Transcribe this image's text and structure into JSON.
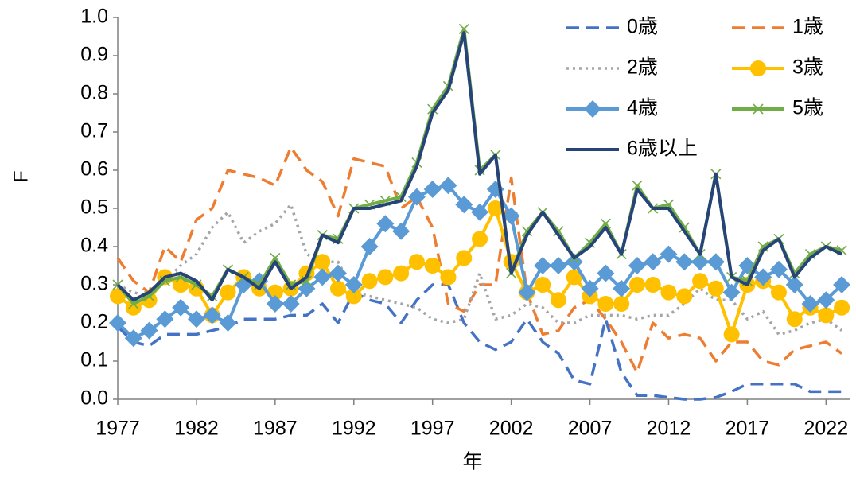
{
  "chart_data": {
    "type": "line",
    "x_label": "年",
    "y_label": "F",
    "x": [
      1977,
      1978,
      1979,
      1980,
      1981,
      1982,
      1983,
      1984,
      1985,
      1986,
      1987,
      1988,
      1989,
      1990,
      1991,
      1992,
      1993,
      1994,
      1995,
      1996,
      1997,
      1998,
      1999,
      2000,
      2001,
      2002,
      2003,
      2004,
      2005,
      2006,
      2007,
      2008,
      2009,
      2010,
      2011,
      2012,
      2013,
      2014,
      2015,
      2016,
      2017,
      2018,
      2019,
      2020,
      2021,
      2022,
      2023
    ],
    "xlim": [
      1977,
      2023.5
    ],
    "xticks": [
      1977,
      1982,
      1987,
      1992,
      1997,
      2002,
      2007,
      2012,
      2017,
      2022
    ],
    "ylim": [
      0,
      1
    ],
    "yticks": [
      {
        "value": 0,
        "label": "0.0"
      },
      0.1,
      0.2,
      0.3,
      0.4,
      0.5,
      0.6,
      0.7,
      0.8,
      0.9,
      {
        "value": 1,
        "label": "1.0"
      }
    ],
    "grid": false,
    "series": [
      {
        "name": "0歳",
        "color": "#4472c4",
        "style": "dashed",
        "marker": "none",
        "values": [
          0.19,
          0.15,
          0.14,
          0.17,
          0.17,
          0.17,
          0.18,
          0.19,
          0.21,
          0.21,
          0.21,
          0.22,
          0.22,
          0.25,
          0.2,
          0.28,
          0.26,
          0.25,
          0.2,
          0.26,
          0.3,
          0.3,
          0.2,
          0.15,
          0.13,
          0.15,
          0.21,
          0.15,
          0.12,
          0.05,
          0.04,
          0.21,
          0.07,
          0.01,
          0.01,
          0.005,
          0,
          0,
          0.005,
          0.02,
          0.04,
          0.04,
          0.04,
          0.04,
          0.02,
          0.02,
          0.02
        ]
      },
      {
        "name": "1歳",
        "color": "#ed7d31",
        "style": "dashed",
        "marker": "none",
        "values": [
          0.37,
          0.31,
          0.28,
          0.4,
          0.36,
          0.47,
          0.5,
          0.6,
          0.59,
          0.58,
          0.56,
          0.66,
          0.6,
          0.57,
          0.48,
          0.63,
          0.62,
          0.61,
          0.5,
          0.53,
          0.45,
          0.25,
          0.23,
          0.3,
          0.3,
          0.58,
          0.28,
          0.17,
          0.18,
          0.24,
          0.26,
          0.21,
          0.15,
          0.07,
          0.2,
          0.16,
          0.17,
          0.16,
          0.1,
          0.15,
          0.15,
          0.1,
          0.09,
          0.13,
          0.14,
          0.15,
          0.12
        ]
      },
      {
        "name": "2歳",
        "color": "#a5a5a5",
        "style": "dotted",
        "marker": "none",
        "values": [
          0.3,
          0.28,
          0.27,
          0.31,
          0.35,
          0.38,
          0.45,
          0.49,
          0.41,
          0.44,
          0.46,
          0.51,
          0.38,
          0.36,
          0.36,
          0.28,
          0.27,
          0.26,
          0.25,
          0.24,
          0.21,
          0.2,
          0.21,
          0.33,
          0.21,
          0.22,
          0.25,
          0.24,
          0.2,
          0.2,
          0.22,
          0.22,
          0.22,
          0.21,
          0.22,
          0.22,
          0.25,
          0.29,
          0.26,
          0.26,
          0.21,
          0.23,
          0.17,
          0.18,
          0.2,
          0.21,
          0.18
        ]
      },
      {
        "name": "3歳",
        "color": "#ffc000",
        "style": "solid",
        "marker": "circle",
        "values": [
          0.27,
          0.24,
          0.26,
          0.32,
          0.3,
          0.29,
          0.22,
          0.28,
          0.32,
          0.29,
          0.28,
          0.29,
          0.33,
          0.36,
          0.29,
          0.27,
          0.31,
          0.32,
          0.33,
          0.36,
          0.35,
          0.32,
          0.37,
          0.42,
          0.5,
          0.36,
          0.28,
          0.3,
          0.26,
          0.32,
          0.27,
          0.25,
          0.25,
          0.3,
          0.3,
          0.28,
          0.27,
          0.31,
          0.29,
          0.17,
          0.3,
          0.31,
          0.28,
          0.21,
          0.24,
          0.22,
          0.24
        ]
      },
      {
        "name": "4歳",
        "color": "#5b9bd5",
        "style": "solid",
        "marker": "diamond",
        "values": [
          0.2,
          0.16,
          0.18,
          0.21,
          0.24,
          0.21,
          0.22,
          0.2,
          0.3,
          0.31,
          0.25,
          0.25,
          0.29,
          0.32,
          0.33,
          0.3,
          0.4,
          0.46,
          0.44,
          0.53,
          0.55,
          0.56,
          0.51,
          0.49,
          0.55,
          0.48,
          0.28,
          0.35,
          0.35,
          0.36,
          0.29,
          0.33,
          0.29,
          0.35,
          0.36,
          0.38,
          0.36,
          0.36,
          0.36,
          0.28,
          0.35,
          0.32,
          0.34,
          0.3,
          0.25,
          0.26,
          0.3
        ]
      },
      {
        "name": "5歳",
        "color": "#70ad47",
        "style": "solid",
        "marker": "cross",
        "values": [
          0.3,
          0.25,
          0.27,
          0.31,
          0.32,
          0.3,
          0.27,
          0.34,
          0.32,
          0.3,
          0.37,
          0.3,
          0.31,
          0.43,
          0.42,
          0.5,
          0.51,
          0.52,
          0.53,
          0.62,
          0.76,
          0.82,
          0.97,
          0.6,
          0.64,
          0.33,
          0.44,
          0.49,
          0.44,
          0.37,
          0.41,
          0.46,
          0.38,
          0.56,
          0.5,
          0.51,
          0.45,
          0.38,
          0.59,
          0.32,
          0.31,
          0.4,
          0.42,
          0.33,
          0.38,
          0.4,
          0.39
        ]
      },
      {
        "name": "6歳以上",
        "color": "#264478",
        "style": "solid",
        "marker": "none",
        "values": [
          0.3,
          0.26,
          0.28,
          0.32,
          0.33,
          0.31,
          0.26,
          0.34,
          0.32,
          0.29,
          0.36,
          0.29,
          0.32,
          0.43,
          0.41,
          0.5,
          0.5,
          0.51,
          0.52,
          0.61,
          0.75,
          0.81,
          0.96,
          0.59,
          0.64,
          0.33,
          0.43,
          0.49,
          0.43,
          0.37,
          0.4,
          0.45,
          0.38,
          0.55,
          0.5,
          0.5,
          0.44,
          0.38,
          0.59,
          0.32,
          0.3,
          0.39,
          0.42,
          0.32,
          0.37,
          0.4,
          0.38
        ]
      }
    ]
  }
}
